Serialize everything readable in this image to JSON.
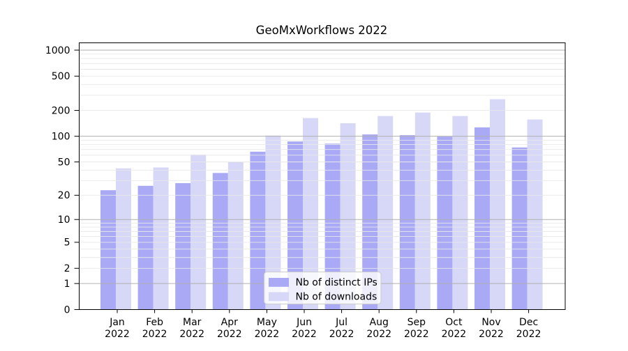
{
  "window": {
    "title": "GeoMxWorkflows 2022"
  },
  "chart_data": {
    "type": "bar",
    "title": "GeoMxWorkflows 2022",
    "yscale": "log1p",
    "ylim": [
      0,
      1000
    ],
    "yticks": [
      0,
      1,
      2,
      5,
      10,
      20,
      50,
      100,
      200,
      500,
      1000
    ],
    "major_gridlines": [
      1,
      10,
      100,
      1000
    ],
    "minor_gridline_decades": [
      1,
      10,
      100
    ],
    "grid": true,
    "legend_position": "lower center",
    "categories": [
      "Jan 2022",
      "Feb 2022",
      "Mar 2022",
      "Apr 2022",
      "May 2022",
      "Jun 2022",
      "Jul 2022",
      "Aug 2022",
      "Sep 2022",
      "Oct 2022",
      "Nov 2022",
      "Dec 2022"
    ],
    "category_months": [
      "Jan",
      "Feb",
      "Mar",
      "Apr",
      "May",
      "Jun",
      "Jul",
      "Aug",
      "Sep",
      "Oct",
      "Nov",
      "Dec"
    ],
    "category_year": "2022",
    "series": [
      {
        "name": "Nb of distinct IPs",
        "color": "#a9a9f6",
        "values": [
          23,
          26,
          28,
          37,
          66,
          87,
          82,
          105,
          103,
          99,
          127,
          74
        ]
      },
      {
        "name": "Nb of downloads",
        "color": "#d7d7f8",
        "values": [
          42,
          43,
          61,
          50,
          102,
          163,
          142,
          172,
          189,
          172,
          270,
          157
        ]
      }
    ]
  },
  "colors": {
    "background": "#ffffff",
    "bar_ips": "#a9a9f6",
    "bar_downloads": "#d7d7f8",
    "major_grid": "#b0b0b0",
    "minor_grid": "#e8e8e8",
    "spine": "#000000",
    "tick": "#000000",
    "legend_bg": "#ffffff",
    "legend_border": "#cccccc"
  }
}
